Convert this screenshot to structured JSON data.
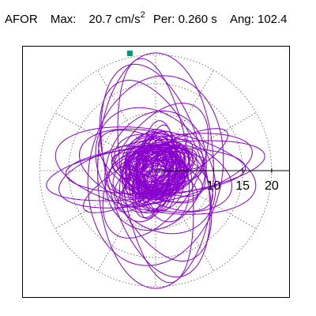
{
  "header": {
    "component": "AFOR",
    "max_label": "Max:",
    "max_value": "20.7",
    "max_unit": "cm/s",
    "max_unit_exp": "2",
    "per_label": "Per:",
    "per_value": "0.260 s",
    "ang_label": "Ang:",
    "ang_value": "102.4"
  },
  "chart_data": {
    "type": "scatter",
    "subtype": "polar hodogram (particle motion orbit)",
    "rlim": [
      0,
      20.7
    ],
    "r_ticks": [
      5,
      10,
      15,
      20
    ],
    "r_tick_labels_shown": [
      "10",
      "15",
      "20"
    ],
    "angle_grid_deg": [
      0,
      30,
      60,
      90,
      120,
      150,
      180,
      210,
      240,
      270,
      300,
      330
    ],
    "grid": "dotted",
    "series_color": "#8800cc",
    "max_marker": {
      "r": 20.7,
      "angle_deg": 102.4,
      "color": "#009977"
    },
    "orbit_ellipses": [
      {
        "a": 20.3,
        "b": 10.0,
        "rot_deg": 90
      },
      {
        "a": 16.5,
        "b": 11.5,
        "rot_deg": 80
      },
      {
        "a": 19.5,
        "b": 6.0,
        "rot_deg": 98
      },
      {
        "a": 18.8,
        "b": 8.5,
        "rot_deg": 104
      },
      {
        "a": 17.0,
        "b": 5.5,
        "rot_deg": 12
      },
      {
        "a": 15.5,
        "b": 4.0,
        "rot_deg": 2
      },
      {
        "a": 17.5,
        "b": 7.0,
        "rot_deg": 170
      },
      {
        "a": 19.0,
        "b": 4.5,
        "rot_deg": 8
      },
      {
        "a": 13.0,
        "b": 7.0,
        "rot_deg": 58
      },
      {
        "a": 12.0,
        "b": 9.0,
        "rot_deg": 130
      },
      {
        "a": 14.0,
        "b": 3.5,
        "rot_deg": 28
      },
      {
        "a": 16.5,
        "b": 8.0,
        "rot_deg": 112
      },
      {
        "a": 11.0,
        "b": 5.0,
        "rot_deg": 150
      },
      {
        "a": 13.5,
        "b": 6.5,
        "rot_deg": 165
      },
      {
        "a": 10.5,
        "b": 8.5,
        "rot_deg": 70
      }
    ]
  }
}
